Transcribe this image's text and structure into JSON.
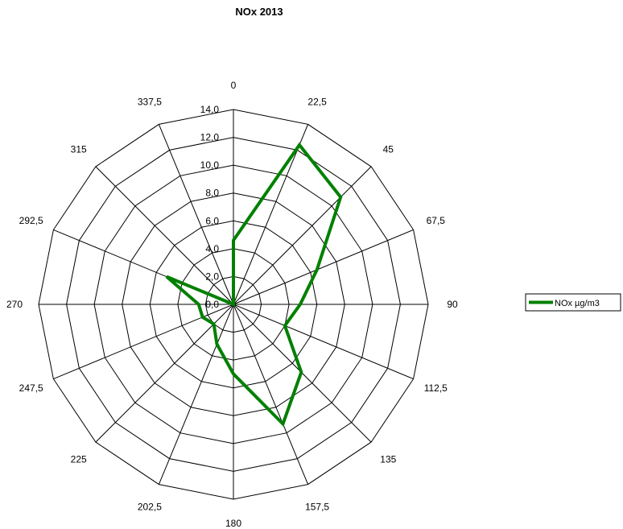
{
  "chart_data": {
    "type": "radar",
    "title": "NOx 2013",
    "categories": [
      "0",
      "22,5",
      "45",
      "67,5",
      "90",
      "112,5",
      "135",
      "157,5",
      "180",
      "202,5",
      "225",
      "247,5",
      "270",
      "292,5",
      "315",
      "337,5"
    ],
    "ticks": [
      "0,0",
      "2,0",
      "4,0",
      "6,0",
      "8,0",
      "10,0",
      "12,0",
      "14,0"
    ],
    "rmax": 14,
    "series": [
      {
        "name": "NOx µg/m3",
        "color": "#008000",
        "values": [
          4.6,
          12.4,
          10.9,
          6.5,
          4.8,
          4.0,
          6.9,
          9.3,
          5.0,
          3.1,
          2.0,
          2.4,
          2.5,
          5.2,
          0,
          0
        ]
      }
    ],
    "legend_position": "right",
    "grid": true
  }
}
